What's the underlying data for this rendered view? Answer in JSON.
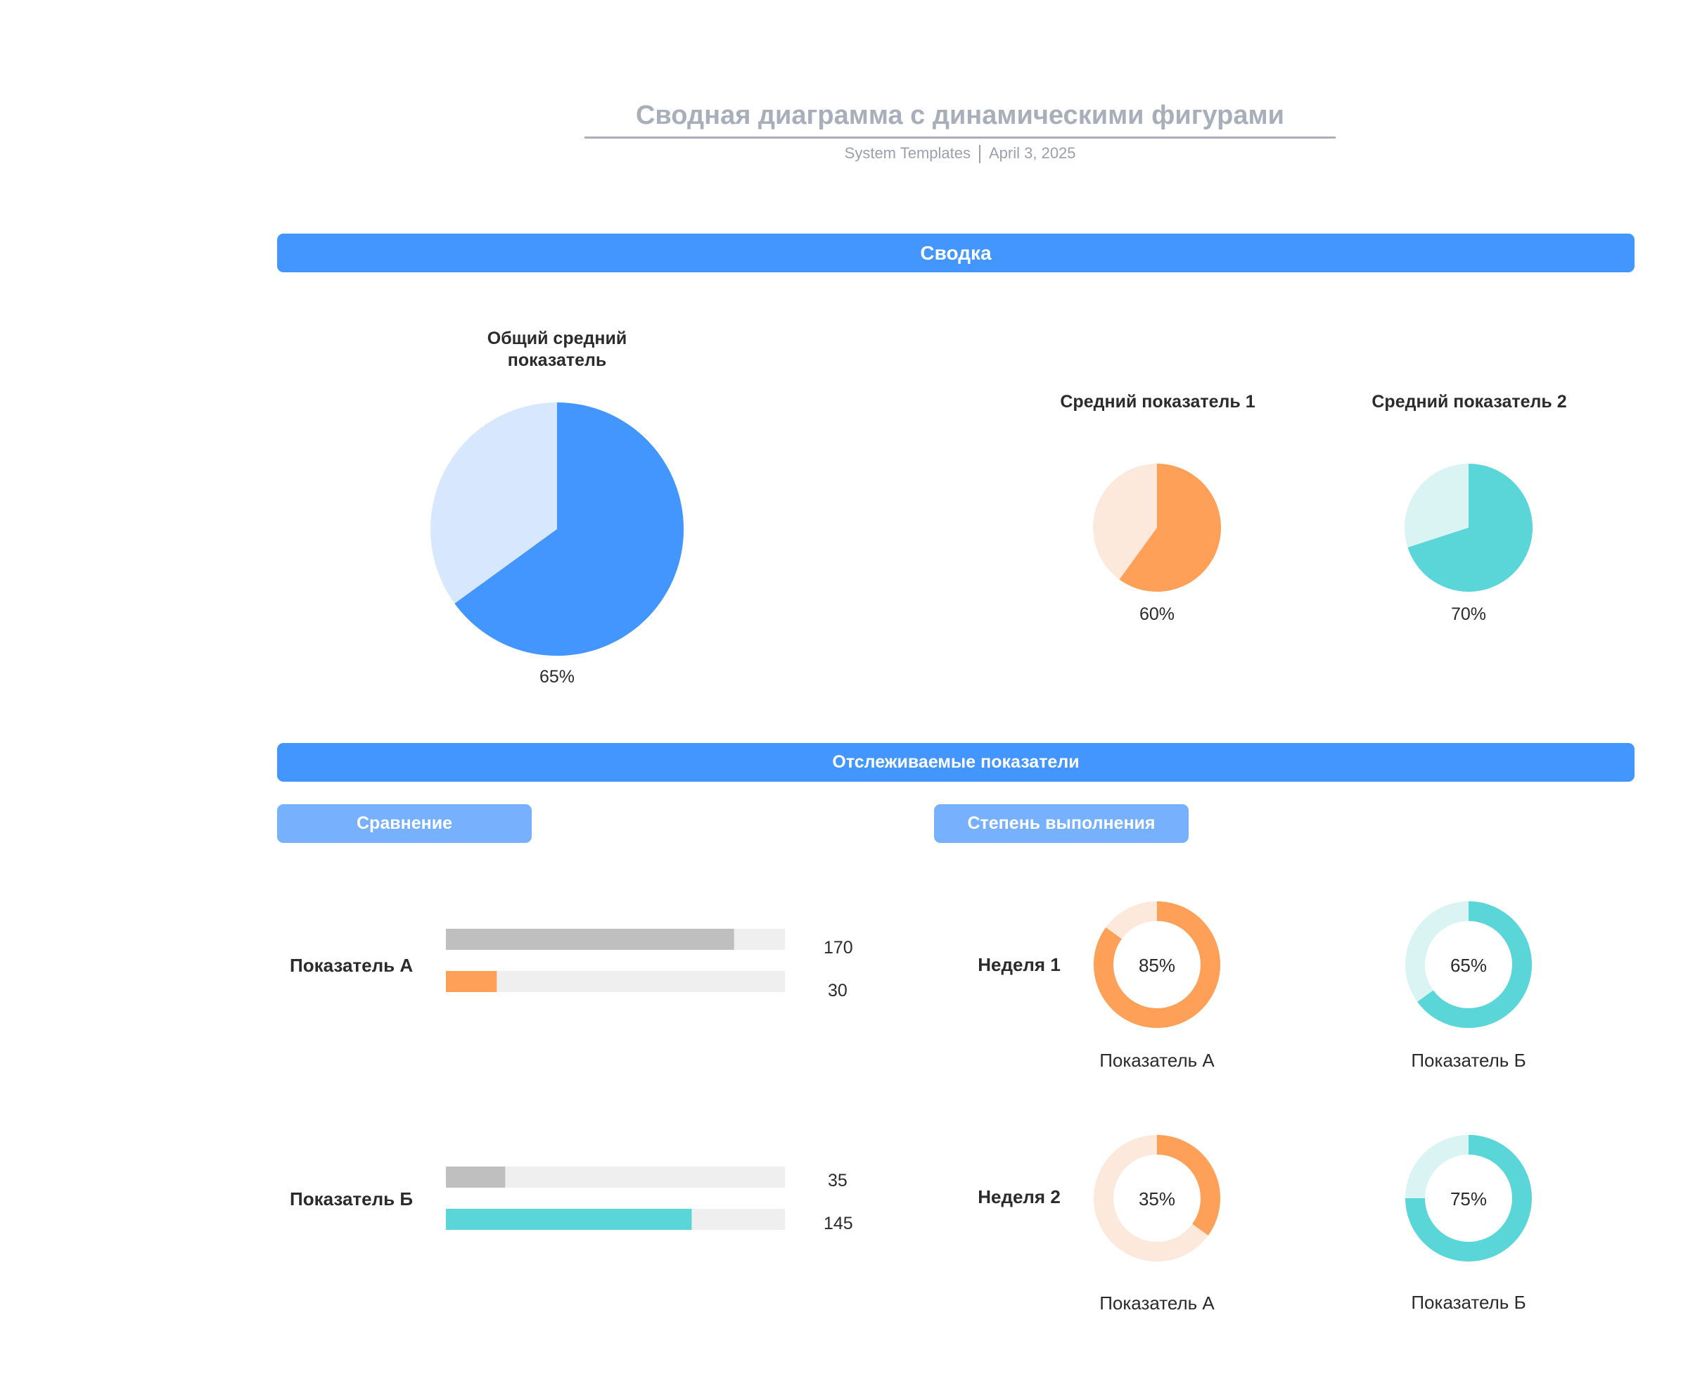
{
  "header": {
    "title": "Сводная диаграмма с динамическими фигурами",
    "source": "System Templates",
    "date": "April 3, 2025"
  },
  "sections": {
    "summary": "Сводка",
    "tracked": "Отслеживаемые показатели",
    "comparison": "Сравнение",
    "completion": "Степень выполнения"
  },
  "colors": {
    "accent": "#4296fd",
    "accent_light": "#d7e7fd",
    "orange": "#fea058",
    "orange_light": "#fde9dc",
    "teal": "#5ad6d8",
    "teal_light": "#daf3f3",
    "gray": "#bfbfbf",
    "track": "#efefef"
  },
  "chart_data": [
    {
      "type": "pie",
      "title": "Общий средний показатель",
      "label": "65%",
      "value": 65,
      "max": 100
    },
    {
      "type": "pie",
      "title": "Средний показатель 1",
      "label": "60%",
      "value": 60,
      "max": 100
    },
    {
      "type": "pie",
      "title": "Средний показатель 2",
      "label": "70%",
      "value": 70,
      "max": 100
    },
    {
      "type": "bar",
      "title": "Сравнение",
      "categories": [
        "Показатель А",
        "Показатель Б"
      ],
      "rows": [
        {
          "label": "Показатель А",
          "bars": [
            {
              "value": 170,
              "label": "170"
            },
            {
              "value": 30,
              "label": "30"
            }
          ]
        },
        {
          "label": "Показатель Б",
          "bars": [
            {
              "value": 35,
              "label": "35"
            },
            {
              "value": 145,
              "label": "145"
            }
          ]
        }
      ],
      "xlim": [
        0,
        200
      ]
    },
    {
      "type": "pie",
      "title": "Степень выполнения",
      "weeks": [
        {
          "label": "Неделя 1",
          "items": [
            {
              "name": "Показатель А",
              "value": 85,
              "label": "85%"
            },
            {
              "name": "Показатель Б",
              "value": 65,
              "label": "65%"
            }
          ]
        },
        {
          "label": "Неделя 2",
          "items": [
            {
              "name": "Показатель А",
              "value": 35,
              "label": "35%"
            },
            {
              "name": "Показатель Б",
              "value": 75,
              "label": "75%"
            }
          ]
        }
      ]
    }
  ]
}
